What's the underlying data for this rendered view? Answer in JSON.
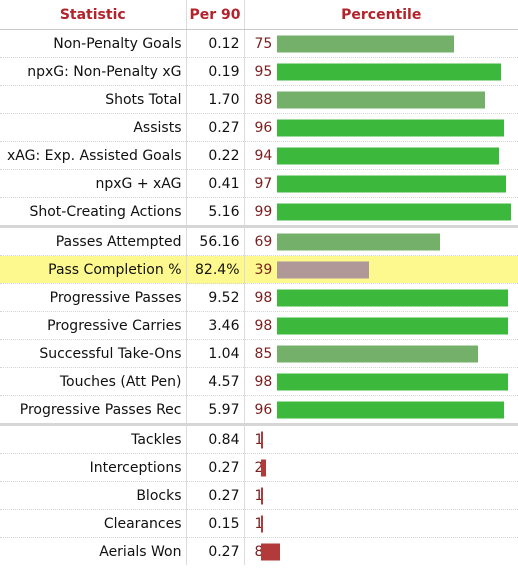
{
  "headers": {
    "statistic": "Statistic",
    "per90": "Per 90",
    "percentile": "Percentile"
  },
  "colors": {
    "header_text": "#b3232b",
    "percentile_text": "#7a1f1f",
    "bar_elite": "#3cb93c",
    "bar_good": "#74b06a",
    "bar_mid": "#b09898",
    "bar_low": "#b33a3a",
    "highlight_row": "#fdf98e"
  },
  "rows": [
    {
      "stat": "Non-Penalty Goals",
      "per90": "0.12",
      "pct": "75",
      "group": 1
    },
    {
      "stat": "npxG: Non-Penalty xG",
      "per90": "0.19",
      "pct": "95",
      "group": 1
    },
    {
      "stat": "Shots Total",
      "per90": "1.70",
      "pct": "88",
      "group": 1
    },
    {
      "stat": "Assists",
      "per90": "0.27",
      "pct": "96",
      "group": 1
    },
    {
      "stat": "xAG: Exp. Assisted Goals",
      "per90": "0.22",
      "pct": "94",
      "group": 1
    },
    {
      "stat": "npxG + xAG",
      "per90": "0.41",
      "pct": "97",
      "group": 1
    },
    {
      "stat": "Shot-Creating Actions",
      "per90": "5.16",
      "pct": "99",
      "group": 1
    },
    {
      "stat": "Passes Attempted",
      "per90": "56.16",
      "pct": "69",
      "group": 2
    },
    {
      "stat": "Pass Completion %",
      "per90": "82.4%",
      "pct": "39",
      "group": 2,
      "highlight": true
    },
    {
      "stat": "Progressive Passes",
      "per90": "9.52",
      "pct": "98",
      "group": 2
    },
    {
      "stat": "Progressive Carries",
      "per90": "3.46",
      "pct": "98",
      "group": 2
    },
    {
      "stat": "Successful Take-Ons",
      "per90": "1.04",
      "pct": "85",
      "group": 2
    },
    {
      "stat": "Touches (Att Pen)",
      "per90": "4.57",
      "pct": "98",
      "group": 2
    },
    {
      "stat": "Progressive Passes Rec",
      "per90": "5.97",
      "pct": "96",
      "group": 2
    },
    {
      "stat": "Tackles",
      "per90": "0.84",
      "pct": "1",
      "group": 3
    },
    {
      "stat": "Interceptions",
      "per90": "0.27",
      "pct": "2",
      "group": 3
    },
    {
      "stat": "Blocks",
      "per90": "0.27",
      "pct": "1",
      "group": 3
    },
    {
      "stat": "Clearances",
      "per90": "0.15",
      "pct": "1",
      "group": 3
    },
    {
      "stat": "Aerials Won",
      "per90": "0.27",
      "pct": "8",
      "group": 3
    }
  ]
}
